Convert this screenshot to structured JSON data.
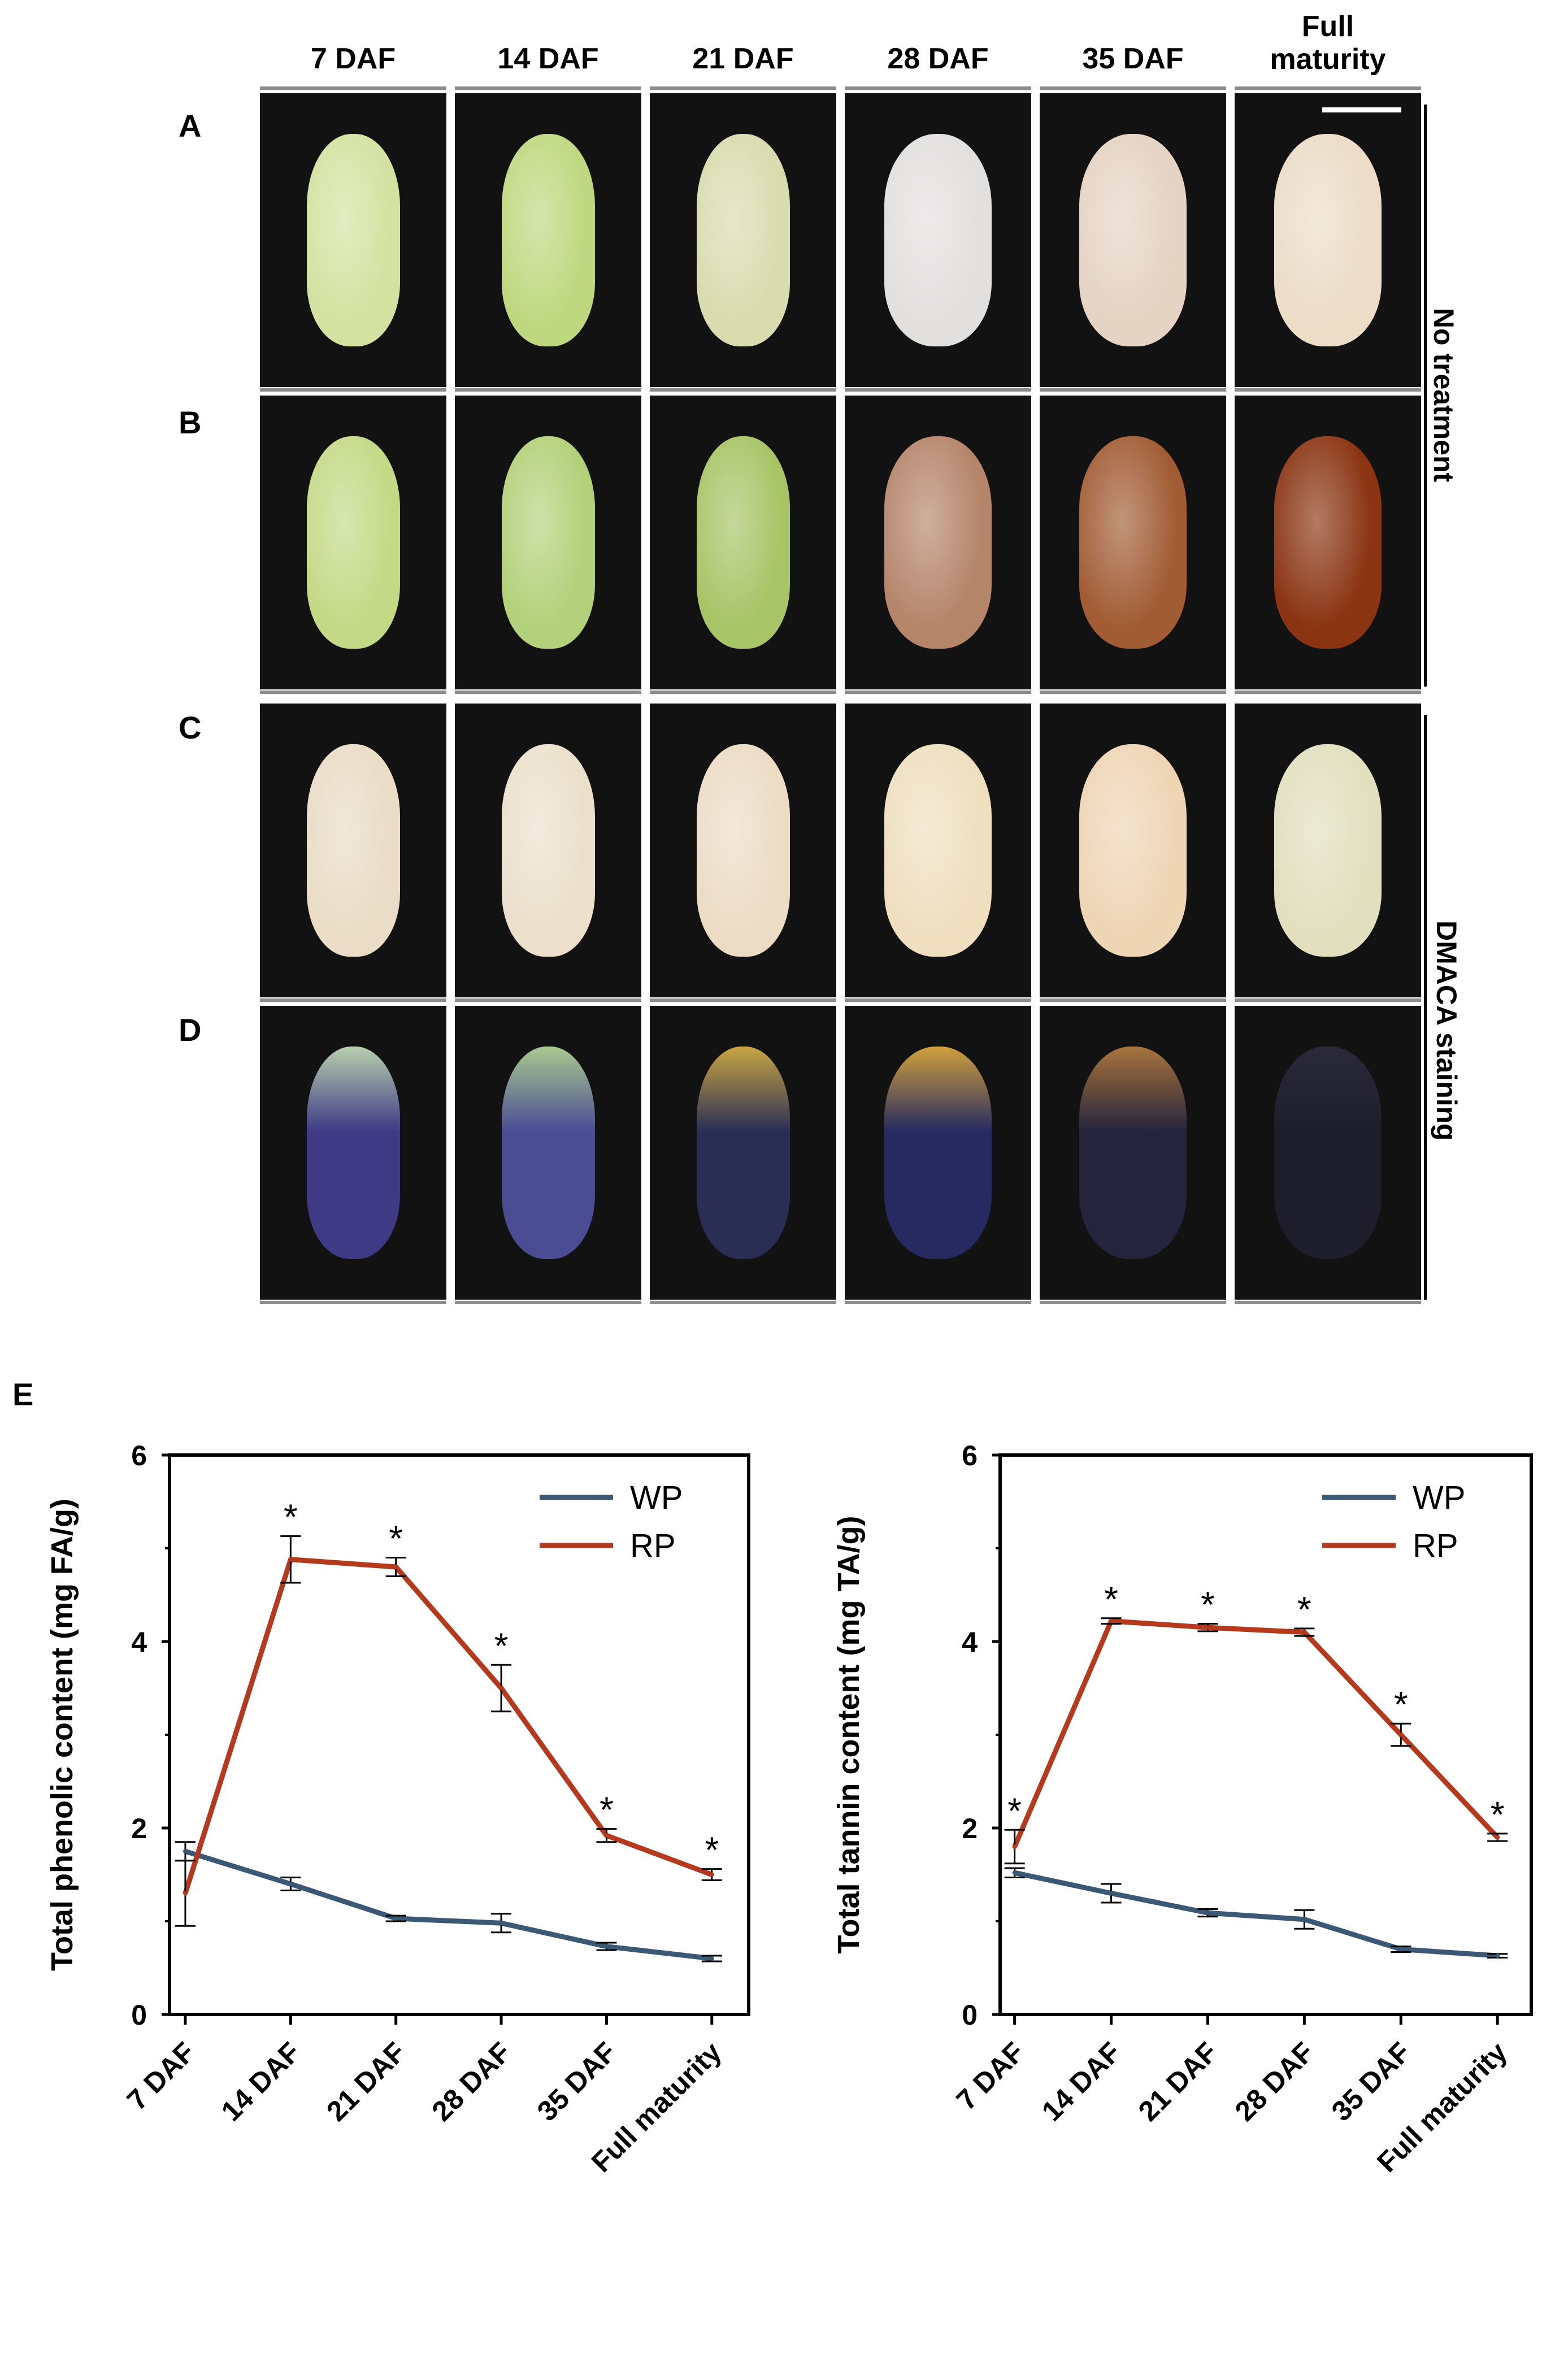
{
  "columns": [
    "7 DAF",
    "14 DAF",
    "21 DAF",
    "28 DAF",
    "35 DAF",
    "Full maturity"
  ],
  "row_letters": [
    "A",
    "B",
    "C",
    "D"
  ],
  "side_labels": [
    "No treatment",
    "DMACA staining"
  ],
  "panel_e_letter": "E",
  "seed_colors": {
    "A": [
      "#d3e2a0",
      "#bfd87f",
      "#d8dcae",
      "#e2e0df",
      "#e5d3c3",
      "#ecdcc8"
    ],
    "B": [
      "#c4d986",
      "#b3d17a",
      "#a7c466",
      "#b5856a",
      "#a15c34",
      "#8a3412"
    ],
    "C": [
      "#eadcc6",
      "#ece0cc",
      "#ecdcc6",
      "#efdfbf",
      "#eed5b4",
      "#e1dfbe"
    ],
    "D": [
      "#3f3a86",
      "#4a4d94",
      "#2a2e55",
      "#262a61",
      "#25243d",
      "#1d1d2c"
    ]
  },
  "chart_data": [
    {
      "type": "line",
      "xlabel": "",
      "ylabel": "Total phenolic content (mg FA/g)",
      "categories": [
        "7 DAF",
        "14 DAF",
        "21 DAF",
        "28 DAF",
        "35 DAF",
        "Full maturity"
      ],
      "ylim": [
        0,
        6
      ],
      "yticks": [
        "0",
        "2",
        "4",
        "6"
      ],
      "legend_position": "top-right",
      "series": [
        {
          "name": "WP",
          "color": "#3b5874",
          "values": [
            1.75,
            1.4,
            1.03,
            0.98,
            0.73,
            0.6
          ],
          "errors": [
            0.1,
            0.07,
            0.03,
            0.1,
            0.04,
            0.03
          ],
          "significant": [
            false,
            false,
            false,
            false,
            false,
            false
          ]
        },
        {
          "name": "RP",
          "color": "#b5391c",
          "values": [
            1.3,
            4.88,
            4.8,
            3.5,
            1.92,
            1.5
          ],
          "errors": [
            0.35,
            0.25,
            0.1,
            0.25,
            0.07,
            0.06
          ],
          "significant": [
            false,
            true,
            true,
            true,
            true,
            true
          ]
        }
      ],
      "annotation": "*"
    },
    {
      "type": "line",
      "xlabel": "",
      "ylabel": "Total tannin content (mg TA/g)",
      "categories": [
        "7 DAF",
        "14 DAF",
        "21 DAF",
        "28 DAF",
        "35 DAF",
        "Full maturity"
      ],
      "ylim": [
        0,
        6
      ],
      "yticks": [
        "0",
        "2",
        "4",
        "6"
      ],
      "legend_position": "top-right",
      "series": [
        {
          "name": "WP",
          "color": "#3b5874",
          "values": [
            1.52,
            1.3,
            1.09,
            1.02,
            0.7,
            0.63
          ],
          "errors": [
            0.05,
            0.1,
            0.04,
            0.1,
            0.03,
            0.02
          ],
          "significant": [
            false,
            false,
            false,
            false,
            false,
            false
          ]
        },
        {
          "name": "RP",
          "color": "#b5391c",
          "values": [
            1.8,
            4.22,
            4.15,
            4.1,
            3.0,
            1.9
          ],
          "errors": [
            0.18,
            0.03,
            0.04,
            0.04,
            0.12,
            0.04
          ],
          "significant": [
            true,
            true,
            true,
            true,
            true,
            true
          ]
        }
      ],
      "annotation": "*"
    }
  ]
}
